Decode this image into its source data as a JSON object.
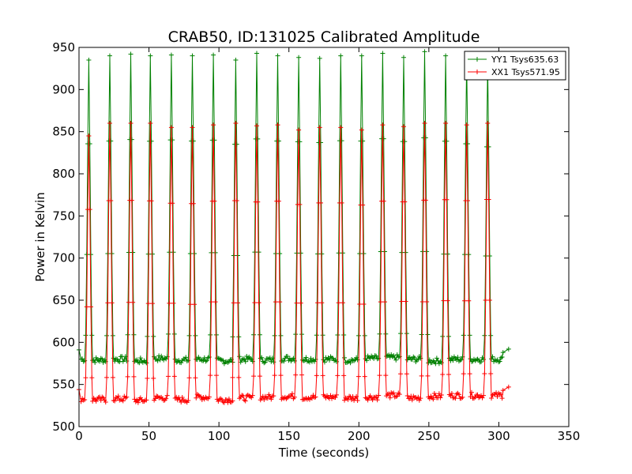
{
  "chart_data": {
    "type": "line",
    "title": "CRAB50, ID:131025 Calibrated Amplitude",
    "xlabel": "Time (seconds)",
    "ylabel": "Power in Kelvin",
    "xlim": [
      0,
      350
    ],
    "ylim": [
      500,
      950
    ],
    "xticks": [
      0,
      50,
      100,
      150,
      200,
      250,
      300,
      350
    ],
    "yticks": [
      500,
      550,
      600,
      650,
      700,
      750,
      800,
      850,
      900,
      950
    ],
    "grid": false,
    "legend_position": "top-right",
    "marker": "+",
    "series": [
      {
        "name": "YY1 Tsys635.63",
        "color": "#008000",
        "baselines": [
          580,
          579,
          580,
          578,
          581,
          579,
          580,
          578,
          580,
          579,
          581,
          580,
          580,
          579,
          581,
          582,
          580,
          578,
          580,
          580
        ],
        "peaks": [
          935,
          940,
          942,
          940,
          941,
          940,
          941,
          935,
          943,
          940,
          938,
          937,
          940,
          940,
          943,
          938,
          945,
          940,
          935,
          930
        ],
        "peak_times": [
          7,
          22,
          37,
          51,
          66,
          81,
          96,
          112,
          127,
          142,
          157,
          172,
          187,
          202,
          217,
          232,
          247,
          262,
          277,
          292
        ],
        "start": [
          0,
          591
        ],
        "end_points": [
          [
            303,
            588
          ],
          [
            307,
            592
          ]
        ]
      },
      {
        "name": "XX1 Tsys571.95",
        "color": "#ff0000",
        "baselines": [
          533,
          532,
          533,
          531,
          534,
          532,
          535,
          532,
          534,
          535,
          536,
          535,
          535,
          534,
          535,
          537,
          534,
          536,
          537,
          537
        ],
        "peaks": [
          845,
          860,
          860,
          860,
          855,
          855,
          858,
          860,
          857,
          858,
          852,
          855,
          855,
          852,
          858,
          856,
          860,
          860,
          858,
          860
        ],
        "peak_times": [
          7,
          22,
          37,
          51,
          66,
          81,
          96,
          112,
          127,
          142,
          157,
          172,
          187,
          202,
          217,
          232,
          247,
          262,
          277,
          292
        ],
        "start": [
          0,
          544
        ],
        "end_points": [
          [
            303,
            543
          ],
          [
            307,
            547
          ]
        ]
      }
    ]
  }
}
